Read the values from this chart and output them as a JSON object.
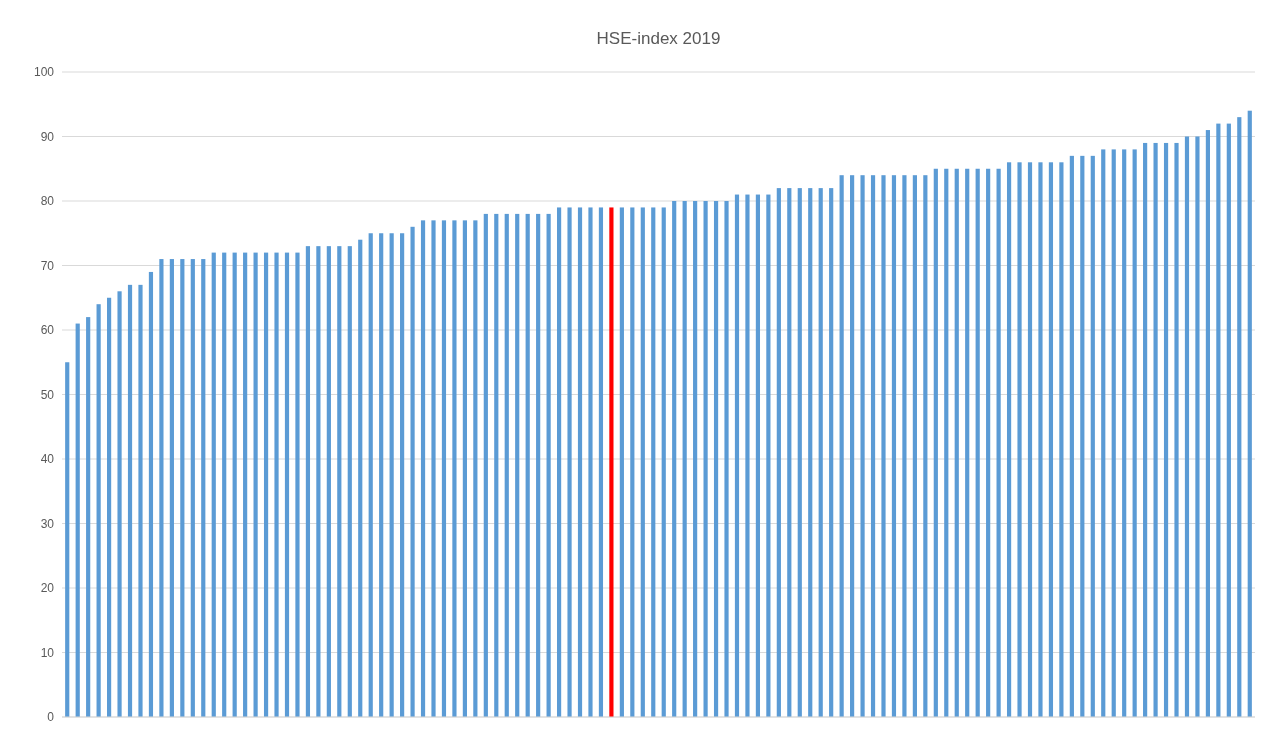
{
  "chart_data": {
    "type": "bar",
    "title": "HSE-index 2019",
    "categories": [
      null,
      null,
      null,
      null,
      null,
      null,
      null,
      null,
      null,
      null,
      null,
      null,
      null,
      null,
      null,
      null,
      null,
      null,
      null,
      null,
      null,
      null,
      null,
      null,
      null,
      null,
      null,
      null,
      null,
      null,
      null,
      null,
      null,
      null,
      null,
      null,
      null,
      null,
      null,
      null,
      null,
      null,
      null,
      null,
      null,
      null,
      null,
      null,
      null,
      null,
      null,
      null,
      null,
      null,
      null,
      null,
      null,
      null,
      null,
      null,
      null,
      null,
      null,
      null,
      null,
      null,
      null,
      null,
      null,
      null,
      null,
      null,
      null,
      null,
      null,
      null,
      null,
      null,
      null,
      null,
      null,
      null,
      null,
      null,
      null,
      null,
      null,
      null,
      null,
      null,
      null,
      null,
      null,
      null,
      null,
      null,
      null,
      null,
      null,
      null,
      null,
      null,
      null,
      null,
      null,
      null,
      null,
      null,
      null,
      null,
      null,
      null,
      null,
      null
    ],
    "values": [
      55,
      61,
      62,
      64,
      65,
      66,
      67,
      67,
      69,
      71,
      71,
      71,
      71,
      71,
      72,
      72,
      72,
      72,
      72,
      72,
      72,
      72,
      72,
      73,
      73,
      73,
      73,
      73,
      74,
      75,
      75,
      75,
      75,
      76,
      77,
      77,
      77,
      77,
      77,
      77,
      78,
      78,
      78,
      78,
      78,
      78,
      78,
      79,
      79,
      79,
      79,
      79,
      79,
      79,
      79,
      79,
      79,
      79,
      80,
      80,
      80,
      80,
      80,
      80,
      81,
      81,
      81,
      81,
      82,
      82,
      82,
      82,
      82,
      82,
      84,
      84,
      84,
      84,
      84,
      84,
      84,
      84,
      84,
      85,
      85,
      85,
      85,
      85,
      85,
      85,
      86,
      86,
      86,
      86,
      86,
      86,
      87,
      87,
      87,
      88,
      88,
      88,
      88,
      89,
      89,
      89,
      89,
      90,
      90,
      91,
      92,
      92,
      93,
      94
    ],
    "colors": [
      "#5b9bd5",
      "#5b9bd5",
      "#5b9bd5",
      "#5b9bd5",
      "#5b9bd5",
      "#5b9bd5",
      "#5b9bd5",
      "#5b9bd5",
      "#5b9bd5",
      "#5b9bd5",
      "#5b9bd5",
      "#5b9bd5",
      "#5b9bd5",
      "#5b9bd5",
      "#5b9bd5",
      "#5b9bd5",
      "#5b9bd5",
      "#5b9bd5",
      "#5b9bd5",
      "#5b9bd5",
      "#5b9bd5",
      "#5b9bd5",
      "#5b9bd5",
      "#5b9bd5",
      "#5b9bd5",
      "#5b9bd5",
      "#5b9bd5",
      "#5b9bd5",
      "#5b9bd5",
      "#5b9bd5",
      "#5b9bd5",
      "#5b9bd5",
      "#5b9bd5",
      "#5b9bd5",
      "#5b9bd5",
      "#5b9bd5",
      "#5b9bd5",
      "#5b9bd5",
      "#5b9bd5",
      "#5b9bd5",
      "#5b9bd5",
      "#5b9bd5",
      "#5b9bd5",
      "#5b9bd5",
      "#5b9bd5",
      "#5b9bd5",
      "#5b9bd5",
      "#5b9bd5",
      "#5b9bd5",
      "#5b9bd5",
      "#5b9bd5",
      "#5b9bd5",
      "#ff0000",
      "#5b9bd5",
      "#5b9bd5",
      "#5b9bd5",
      "#5b9bd5",
      "#5b9bd5",
      "#5b9bd5",
      "#5b9bd5",
      "#5b9bd5",
      "#5b9bd5",
      "#5b9bd5",
      "#5b9bd5",
      "#5b9bd5",
      "#5b9bd5",
      "#5b9bd5",
      "#5b9bd5",
      "#5b9bd5",
      "#5b9bd5",
      "#5b9bd5",
      "#5b9bd5",
      "#5b9bd5",
      "#5b9bd5",
      "#5b9bd5",
      "#5b9bd5",
      "#5b9bd5",
      "#5b9bd5",
      "#5b9bd5",
      "#5b9bd5",
      "#5b9bd5",
      "#5b9bd5",
      "#5b9bd5",
      "#5b9bd5",
      "#5b9bd5",
      "#5b9bd5",
      "#5b9bd5",
      "#5b9bd5",
      "#5b9bd5",
      "#5b9bd5",
      "#5b9bd5",
      "#5b9bd5",
      "#5b9bd5",
      "#5b9bd5",
      "#5b9bd5",
      "#5b9bd5",
      "#5b9bd5",
      "#5b9bd5",
      "#5b9bd5",
      "#5b9bd5",
      "#5b9bd5",
      "#5b9bd5",
      "#5b9bd5",
      "#5b9bd5",
      "#5b9bd5",
      "#5b9bd5",
      "#5b9bd5",
      "#5b9bd5",
      "#5b9bd5",
      "#5b9bd5",
      "#5b9bd5",
      "#5b9bd5",
      "#5b9bd5",
      "#5b9bd5"
    ],
    "ylim": [
      0,
      100
    ],
    "yticks": [
      0,
      10,
      20,
      30,
      40,
      50,
      60,
      70,
      80,
      90,
      100
    ],
    "grid": "y"
  }
}
